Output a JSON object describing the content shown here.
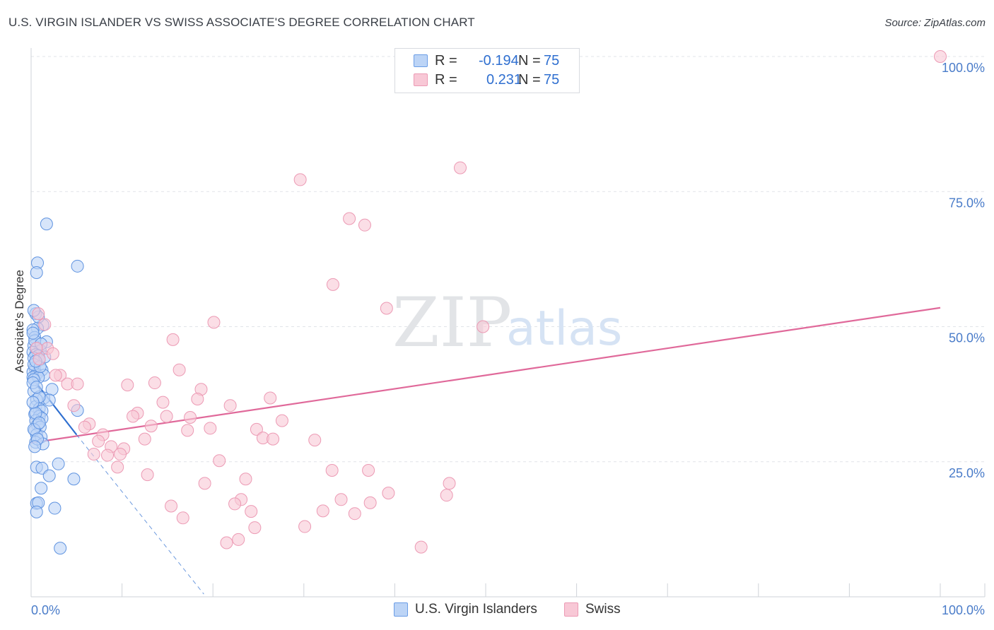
{
  "header": {
    "title": "U.S. VIRGIN ISLANDER VS SWISS ASSOCIATE'S DEGREE CORRELATION CHART",
    "source": "Source: ZipAtlas.com"
  },
  "watermark": {
    "zip": "ZIP",
    "atlas": "atlas"
  },
  "legend": {
    "rows": [
      {
        "r_label": "R =",
        "r_value": "-0.194",
        "n_label": "N =",
        "n_value": "75"
      },
      {
        "r_label": "R =",
        "r_value": "0.231",
        "n_label": "N =",
        "n_value": "75"
      }
    ]
  },
  "bottom_legend": {
    "blue": "U.S. Virgin Islanders",
    "pink": "Swiss"
  },
  "chart_data": {
    "type": "scatter",
    "title": "U.S. VIRGIN ISLANDER VS SWISS ASSOCIATE'S DEGREE CORRELATION CHART",
    "xlabel": "",
    "ylabel": "Associate's Degree",
    "xlim": [
      0,
      100
    ],
    "ylim": [
      0,
      100
    ],
    "x_tick_labels": [
      "0.0%",
      "100.0%"
    ],
    "y_tick_labels": [
      "25.0%",
      "50.0%",
      "75.0%",
      "100.0%"
    ],
    "y_ticks": [
      25,
      50,
      75,
      100
    ],
    "grid": true,
    "colors": {
      "blue_fill": "#bcd4f6",
      "blue_stroke": "#5f93e0",
      "blue_line": "#2f6fd0",
      "pink_fill": "#f8c8d6",
      "pink_stroke": "#ec9ab4",
      "pink_line": "#e0699a",
      "tick_label": "#4a7cc9",
      "axis_title": "#333333",
      "grid": "#e1e4e8"
    },
    "series": [
      {
        "name": "U.S. Virgin Islanders",
        "color": "blue",
        "r": -0.194,
        "n": 75,
        "trend": {
          "x": [
            0,
            5
          ],
          "y": [
            40.8,
            30.0
          ]
        },
        "trend_extension": {
          "x": [
            5,
            19
          ],
          "y": [
            30.0,
            0.5
          ]
        },
        "points": [
          [
            1.7,
            69.0
          ],
          [
            0.7,
            61.8
          ],
          [
            5.1,
            61.2
          ],
          [
            0.6,
            60.0
          ],
          [
            0.5,
            52.4
          ],
          [
            1.3,
            50.3
          ],
          [
            0.7,
            49.7
          ],
          [
            0.2,
            49.4
          ],
          [
            0.4,
            48.0
          ],
          [
            1.7,
            47.2
          ],
          [
            0.3,
            46.5
          ],
          [
            0.6,
            46.0
          ],
          [
            1.0,
            45.6
          ],
          [
            0.2,
            45.3
          ],
          [
            0.5,
            44.8
          ],
          [
            0.8,
            44.6
          ],
          [
            0.3,
            44.2
          ],
          [
            0.9,
            43.8
          ],
          [
            0.4,
            42.4
          ],
          [
            1.2,
            42.0
          ],
          [
            0.2,
            41.6
          ],
          [
            0.6,
            41.2
          ],
          [
            1.4,
            41.0
          ],
          [
            0.2,
            40.6
          ],
          [
            0.8,
            40.6
          ],
          [
            0.3,
            40.2
          ],
          [
            2.3,
            38.4
          ],
          [
            0.3,
            38.0
          ],
          [
            1.4,
            36.8
          ],
          [
            0.6,
            36.5
          ],
          [
            2.0,
            36.4
          ],
          [
            0.5,
            35.2
          ],
          [
            0.9,
            34.8
          ],
          [
            5.1,
            34.5
          ],
          [
            1.2,
            34.4
          ],
          [
            0.4,
            33.8
          ],
          [
            0.9,
            33.4
          ],
          [
            1.2,
            33.0
          ],
          [
            0.5,
            32.6
          ],
          [
            0.7,
            31.8
          ],
          [
            1.0,
            31.4
          ],
          [
            0.4,
            30.8
          ],
          [
            0.6,
            30.0
          ],
          [
            1.1,
            29.6
          ],
          [
            0.5,
            28.6
          ],
          [
            1.3,
            28.3
          ],
          [
            0.6,
            24.0
          ],
          [
            1.2,
            23.8
          ],
          [
            3.0,
            24.6
          ],
          [
            2.0,
            22.4
          ],
          [
            4.7,
            21.8
          ],
          [
            1.1,
            20.1
          ],
          [
            0.6,
            17.3
          ],
          [
            0.8,
            17.4
          ],
          [
            2.6,
            16.4
          ],
          [
            0.6,
            15.7
          ],
          [
            3.2,
            9.0
          ],
          [
            0.3,
            43.0
          ],
          [
            0.2,
            39.6
          ],
          [
            0.9,
            37.0
          ],
          [
            0.4,
            47.4
          ],
          [
            0.3,
            31.0
          ],
          [
            0.8,
            51.8
          ],
          [
            1.0,
            42.6
          ],
          [
            0.5,
            34.0
          ],
          [
            0.7,
            29.2
          ],
          [
            0.2,
            36.0
          ],
          [
            1.5,
            44.4
          ],
          [
            0.3,
            53.0
          ],
          [
            0.6,
            38.8
          ],
          [
            1.1,
            46.8
          ],
          [
            0.4,
            27.8
          ],
          [
            0.9,
            32.2
          ],
          [
            0.5,
            43.6
          ],
          [
            0.2,
            48.8
          ]
        ]
      },
      {
        "name": "Swiss",
        "color": "pink",
        "r": 0.231,
        "n": 75,
        "trend": {
          "x": [
            0,
            100
          ],
          "y": [
            28.5,
            53.5
          ]
        },
        "points": [
          [
            100.0,
            100.0
          ],
          [
            47.2,
            79.4
          ],
          [
            29.6,
            77.2
          ],
          [
            35.0,
            70.0
          ],
          [
            36.7,
            68.8
          ],
          [
            33.2,
            57.8
          ],
          [
            39.1,
            53.4
          ],
          [
            49.7,
            50.0
          ],
          [
            20.1,
            50.8
          ],
          [
            0.8,
            52.4
          ],
          [
            1.5,
            50.4
          ],
          [
            1.8,
            46.0
          ],
          [
            0.6,
            46.0
          ],
          [
            2.4,
            45.0
          ],
          [
            15.6,
            47.6
          ],
          [
            16.3,
            42.0
          ],
          [
            0.9,
            44.0
          ],
          [
            3.2,
            41.0
          ],
          [
            2.7,
            41.0
          ],
          [
            4.0,
            39.4
          ],
          [
            5.1,
            39.4
          ],
          [
            10.6,
            39.2
          ],
          [
            13.6,
            39.6
          ],
          [
            18.7,
            38.4
          ],
          [
            14.5,
            36.0
          ],
          [
            18.3,
            36.6
          ],
          [
            26.3,
            36.8
          ],
          [
            21.9,
            35.4
          ],
          [
            11.7,
            34.0
          ],
          [
            11.2,
            33.4
          ],
          [
            14.9,
            33.4
          ],
          [
            17.5,
            33.2
          ],
          [
            27.6,
            32.6
          ],
          [
            4.7,
            35.4
          ],
          [
            6.4,
            32.0
          ],
          [
            5.9,
            31.4
          ],
          [
            13.2,
            31.6
          ],
          [
            19.7,
            31.2
          ],
          [
            17.2,
            30.8
          ],
          [
            24.8,
            31.0
          ],
          [
            7.9,
            30.0
          ],
          [
            12.5,
            29.2
          ],
          [
            25.5,
            29.4
          ],
          [
            26.6,
            29.2
          ],
          [
            31.2,
            29.0
          ],
          [
            7.4,
            28.8
          ],
          [
            8.8,
            27.8
          ],
          [
            10.2,
            27.4
          ],
          [
            6.9,
            26.4
          ],
          [
            9.8,
            26.4
          ],
          [
            8.4,
            26.2
          ],
          [
            9.5,
            24.0
          ],
          [
            20.7,
            25.2
          ],
          [
            12.8,
            22.6
          ],
          [
            33.1,
            23.4
          ],
          [
            37.1,
            23.4
          ],
          [
            23.6,
            21.8
          ],
          [
            19.1,
            21.0
          ],
          [
            46.0,
            21.0
          ],
          [
            39.3,
            19.2
          ],
          [
            45.7,
            18.8
          ],
          [
            23.1,
            18.0
          ],
          [
            34.1,
            18.0
          ],
          [
            22.4,
            17.2
          ],
          [
            37.3,
            17.4
          ],
          [
            15.4,
            16.8
          ],
          [
            32.1,
            15.9
          ],
          [
            24.2,
            15.8
          ],
          [
            35.6,
            15.4
          ],
          [
            16.7,
            14.6
          ],
          [
            24.6,
            12.8
          ],
          [
            30.1,
            13.0
          ],
          [
            22.8,
            10.6
          ],
          [
            21.5,
            10.0
          ],
          [
            42.9,
            9.2
          ]
        ]
      }
    ]
  }
}
